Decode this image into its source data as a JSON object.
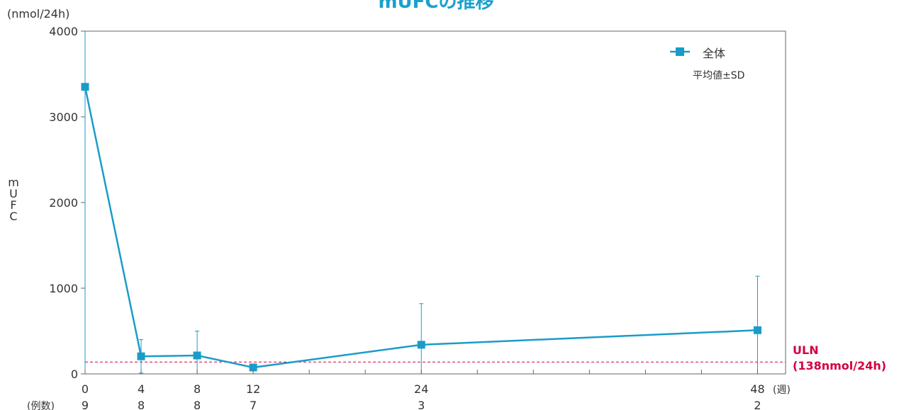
{
  "chart_data": {
    "type": "line",
    "title": "mUFCの推移",
    "ylabel": "mUFC",
    "y_unit": "(nmol/24h)",
    "x_unit": "(週)",
    "count_label": "(例数)",
    "ylim": [
      0,
      4000
    ],
    "xlim": [
      0,
      50
    ],
    "yticks": [
      0,
      1000,
      2000,
      3000,
      4000
    ],
    "x_minor_ticks": [
      16,
      20,
      28,
      32,
      36,
      40,
      44
    ],
    "x": [
      0,
      4,
      8,
      12,
      24,
      48
    ],
    "x_labels": [
      "0",
      "4",
      "8",
      "12",
      "24",
      "48"
    ],
    "counts": [
      "9",
      "8",
      "8",
      "7",
      "3",
      "2"
    ],
    "legend_position": "top-right",
    "series": [
      {
        "name": "全体",
        "note": "平均値±SD",
        "color": "#1a9cc9",
        "values": [
          3350,
          205,
          215,
          75,
          340,
          510
        ],
        "sd": [
          3350,
          195,
          285,
          0,
          480,
          630
        ]
      }
    ],
    "reference_line": {
      "value": 138,
      "label_line1": "ULN",
      "label_line2": "(138nmol/24h)",
      "color": "#d3003f"
    }
  }
}
